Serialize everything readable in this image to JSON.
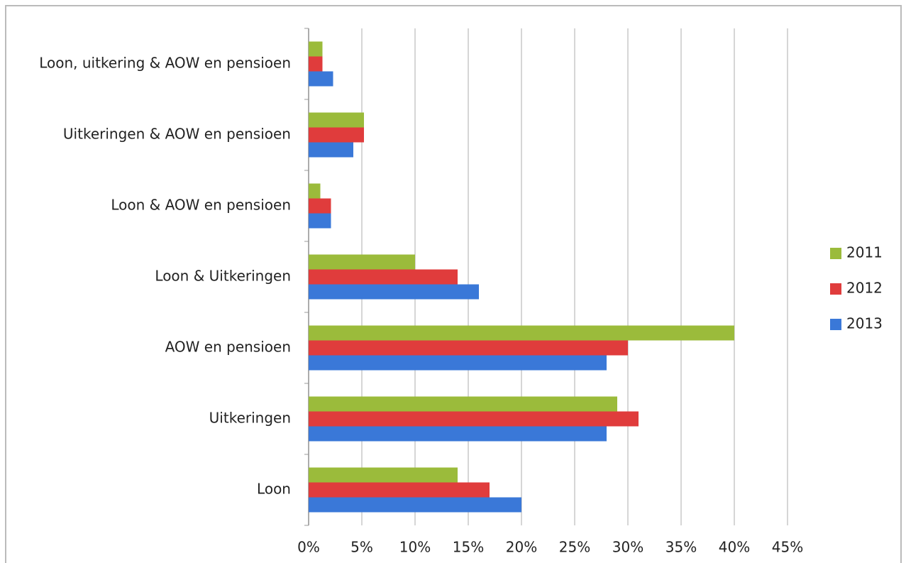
{
  "chart_data": {
    "type": "bar",
    "orientation": "horizontal",
    "categories": [
      "Loon, uitkering & AOW en pensioen",
      "Uitkeringen & AOW en pensioen",
      "Loon & AOW en pensioen",
      "Loon & Uitkeringen",
      "AOW en pensioen",
      "Uitkeringen",
      "Loon"
    ],
    "series": [
      {
        "name": "2011",
        "color": "#9bbb3b",
        "values": [
          1.3,
          5.2,
          1.1,
          10,
          40,
          29,
          14
        ]
      },
      {
        "name": "2012",
        "color": "#e03c3c",
        "values": [
          1.3,
          5.2,
          2.1,
          14,
          30,
          31,
          17
        ]
      },
      {
        "name": "2013",
        "color": "#3a78d8",
        "values": [
          2.3,
          4.2,
          2.1,
          16,
          28,
          28,
          20
        ]
      }
    ],
    "xlim": [
      0,
      45
    ],
    "xticks": [
      {
        "value": 0,
        "label": "0%"
      },
      {
        "value": 5,
        "label": "5%"
      },
      {
        "value": 10,
        "label": "10%"
      },
      {
        "value": 15,
        "label": "15%"
      },
      {
        "value": 20,
        "label": "20%"
      },
      {
        "value": 25,
        "label": "25%"
      },
      {
        "value": 30,
        "label": "30%"
      },
      {
        "value": 35,
        "label": "35%"
      },
      {
        "value": 40,
        "label": "40%"
      },
      {
        "value": 45,
        "label": "45%"
      }
    ],
    "grid": true,
    "legend": "right"
  }
}
